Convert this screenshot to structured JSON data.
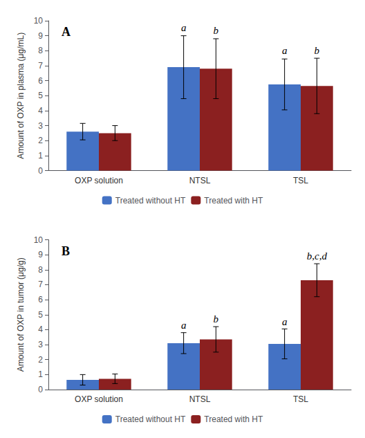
{
  "chart_data": [
    {
      "type": "bar",
      "title": "A",
      "ylabel": "Amount of OXP in plasma (μg/mL)",
      "categories": [
        "OXP solution",
        "NTSL",
        "TSL"
      ],
      "series": [
        {
          "name": "Treated without HT",
          "color": "#4472C4",
          "values": [
            2.6,
            6.9,
            5.75
          ],
          "errors": [
            0.55,
            2.1,
            1.7
          ]
        },
        {
          "name": "Treated with HT",
          "color": "#8B2020",
          "values": [
            2.5,
            6.8,
            5.65
          ],
          "errors": [
            0.5,
            2.0,
            1.85
          ]
        }
      ],
      "annotations": [
        {
          "text": "a",
          "category": "NTSL",
          "series": "Treated without HT",
          "y": 9.2
        },
        {
          "text": "a",
          "category": "TSL",
          "series": "Treated without HT",
          "y": 7.65
        },
        {
          "text": "b",
          "category": "NTSL",
          "series": "Treated with HT",
          "y": 9.0
        },
        {
          "text": "b",
          "category": "TSL",
          "series": "Treated with HT",
          "y": 7.65
        }
      ],
      "ylim": [
        0,
        10
      ],
      "yticks": [
        0,
        1,
        2,
        3,
        4,
        5,
        6,
        7,
        8,
        9,
        10
      ],
      "grid": false,
      "legend": "bottom"
    },
    {
      "type": "bar",
      "title": "B",
      "ylabel": "Amount of OXP in tumor (μg/g)",
      "categories": [
        "OXP solution",
        "NTSL",
        "TSL"
      ],
      "series": [
        {
          "name": "Treated without HT",
          "color": "#4472C4",
          "values": [
            0.65,
            3.1,
            3.05
          ],
          "errors": [
            0.35,
            0.7,
            1.0
          ]
        },
        {
          "name": "Treated with HT",
          "color": "#8B2020",
          "values": [
            0.72,
            3.35,
            7.3
          ],
          "errors": [
            0.32,
            0.85,
            1.1
          ]
        }
      ],
      "annotations": [
        {
          "text": "a",
          "category": "NTSL",
          "series": "Treated without HT",
          "y": 3.95
        },
        {
          "text": "a",
          "category": "TSL",
          "series": "Treated without HT",
          "y": 4.2
        },
        {
          "text": "b",
          "category": "NTSL",
          "series": "Treated with HT",
          "y": 4.35
        },
        {
          "text": "b,c,d",
          "category": "TSL",
          "series": "Treated with HT",
          "y": 8.55
        }
      ],
      "ylim": [
        0,
        10
      ],
      "yticks": [
        0,
        1,
        2,
        3,
        4,
        5,
        6,
        7,
        8,
        9,
        10
      ],
      "grid": false,
      "legend": "bottom"
    }
  ]
}
